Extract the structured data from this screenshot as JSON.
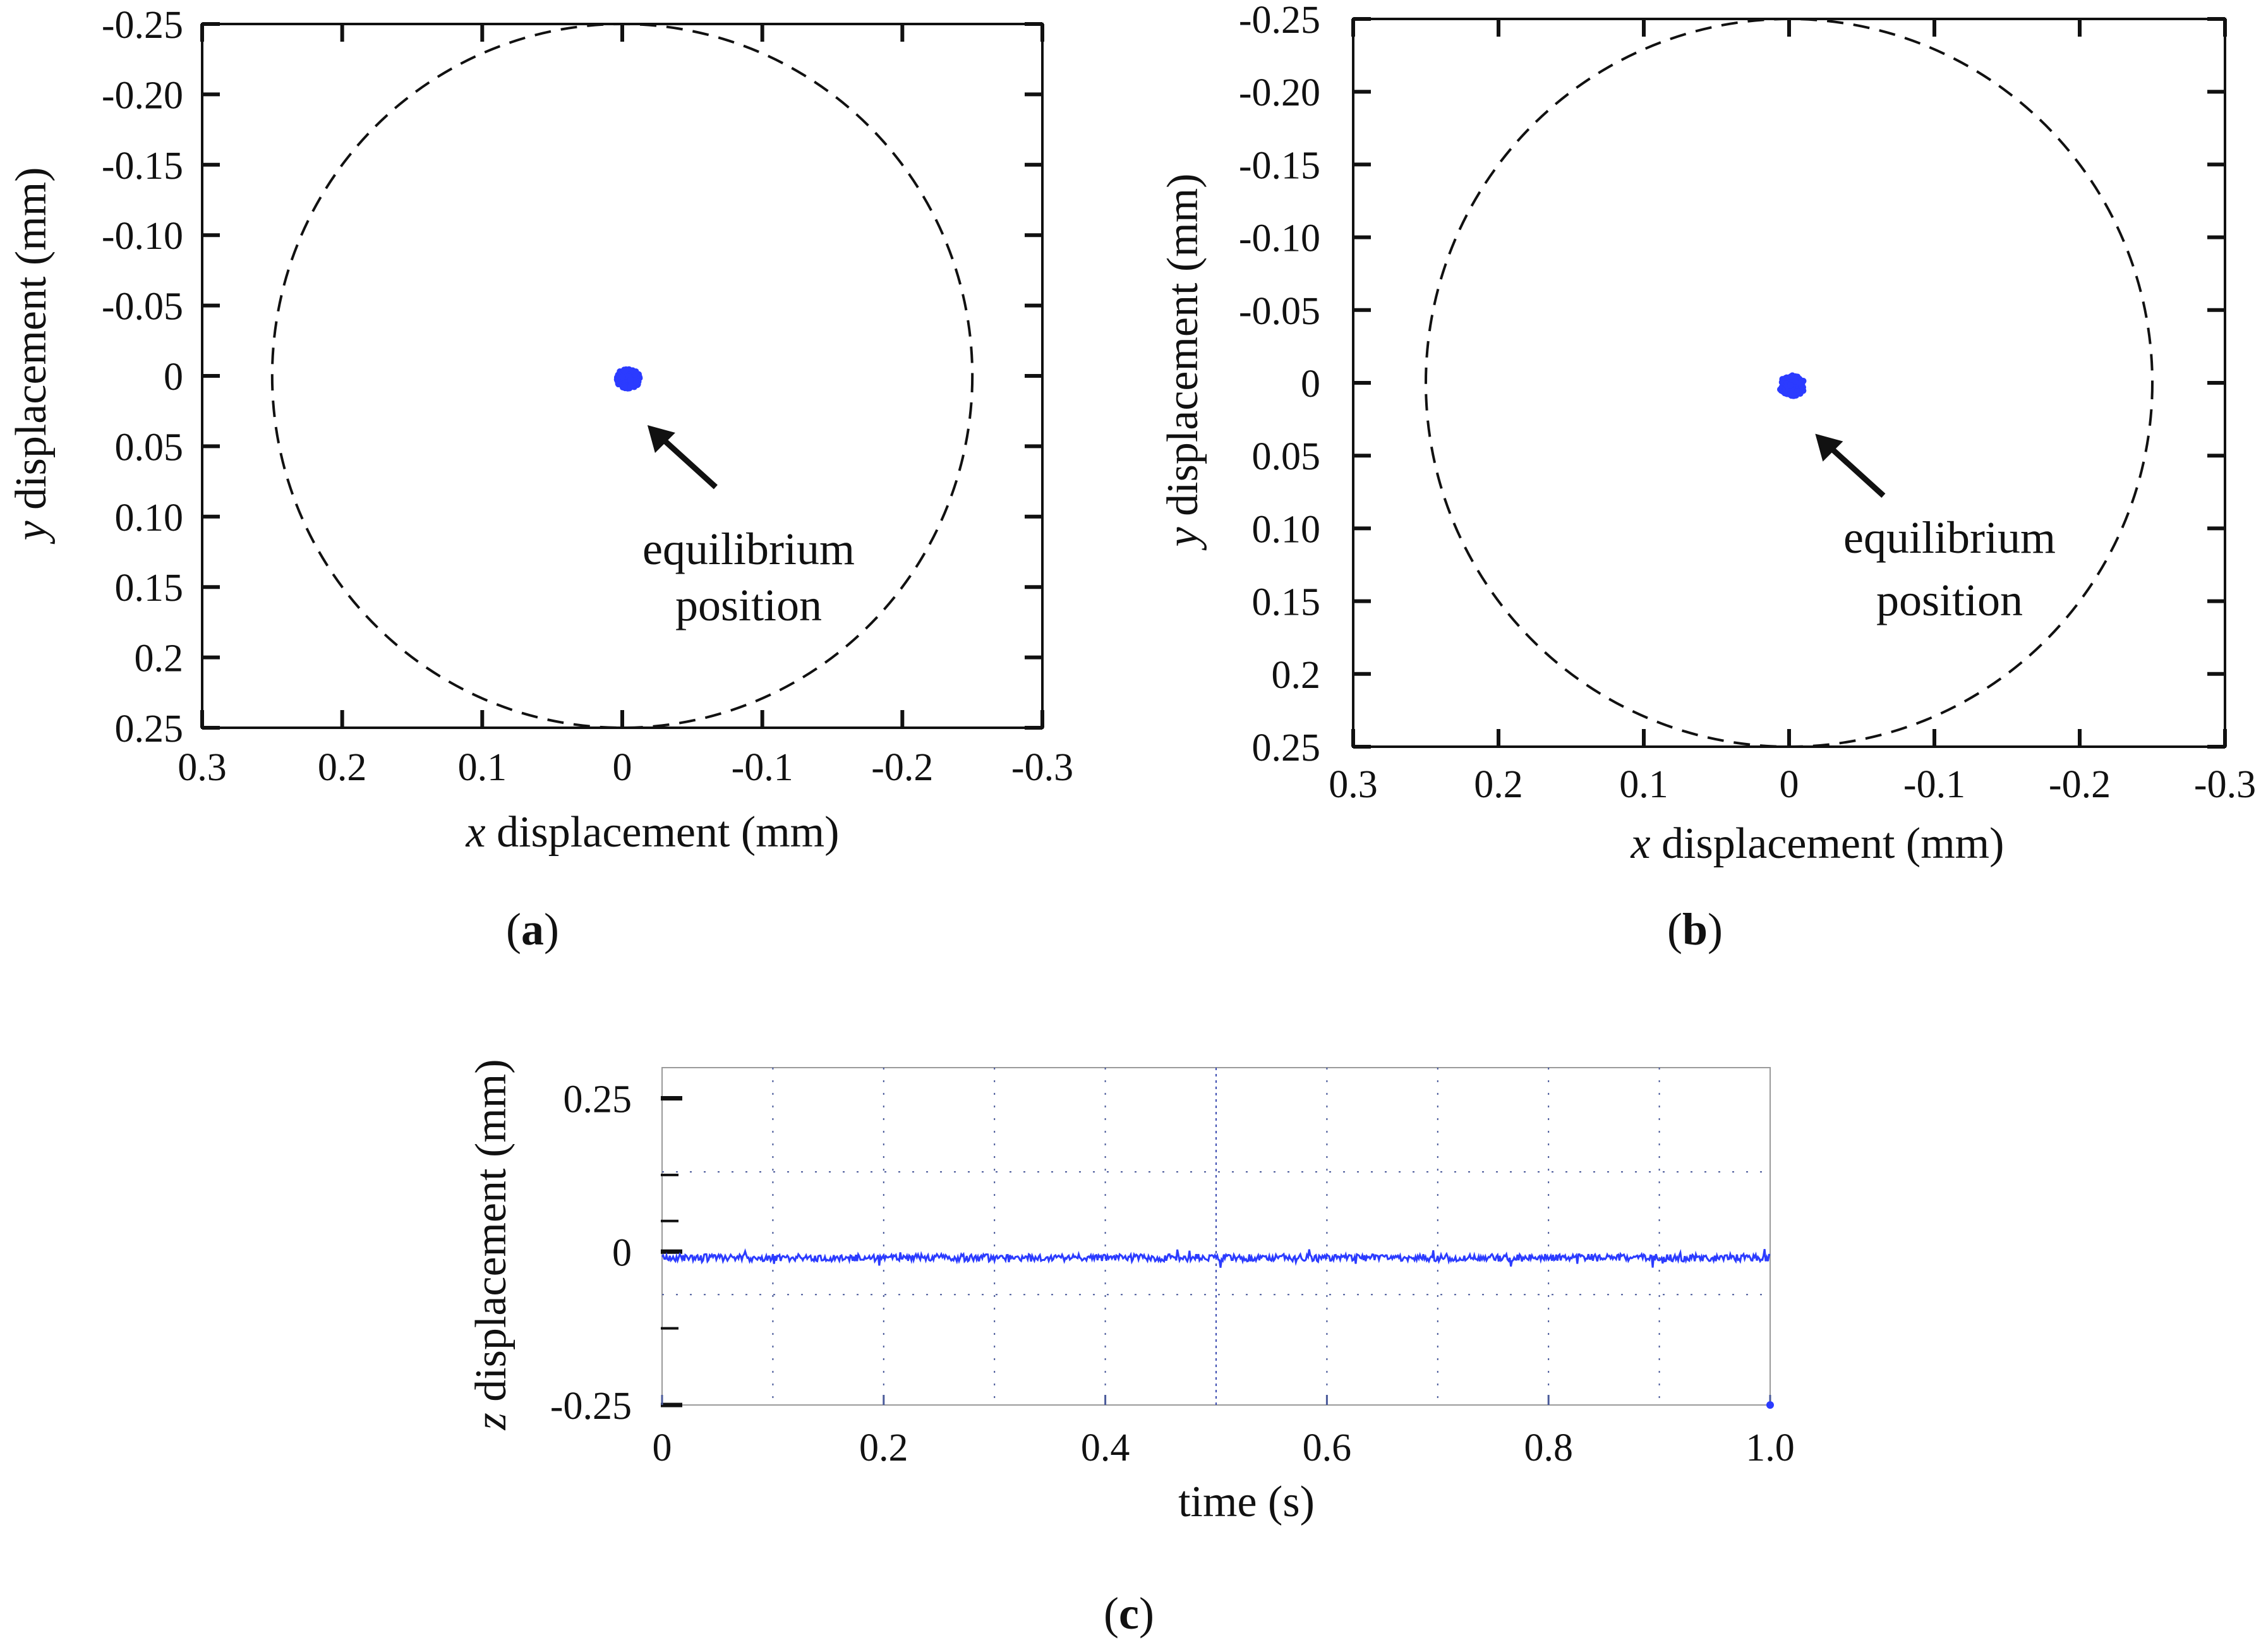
{
  "chart_data": [
    {
      "id": "a",
      "type": "scatter",
      "panel_label": "a",
      "xlabel_var": "x",
      "xlabel_rest": " displacement (mm)",
      "ylabel_var": "y",
      "ylabel_rest": " displacement (mm)",
      "xlim": [
        0.3,
        -0.3
      ],
      "ylim": [
        -0.25,
        0.25
      ],
      "x_ticks": [
        0.3,
        0.2,
        0.1,
        0,
        -0.1,
        -0.2,
        -0.3
      ],
      "x_tick_labels": [
        "0.3",
        "0.2",
        "0.1",
        "0",
        "-0.1",
        "-0.2",
        "-0.3"
      ],
      "y_ticks": [
        -0.25,
        -0.2,
        -0.15,
        -0.1,
        -0.05,
        0,
        0.05,
        0.1,
        0.15,
        0.2,
        0.25
      ],
      "y_tick_labels": [
        "-0.25",
        "-0.20",
        "-0.15",
        "-0.10",
        "-0.05",
        "0",
        "0.05",
        "0.10",
        "0.15",
        "0.2",
        "0.25"
      ],
      "boundary_circle_radius": 0.25,
      "cluster": {
        "center_x": -0.004,
        "center_y": 0.002,
        "spread": 0.008,
        "count": 160
      },
      "annotation": {
        "line1": "equilibrium",
        "line2": "position",
        "arrow_to_x": -0.018,
        "arrow_to_y": 0.035
      },
      "series_color": "#2b3bff",
      "grid": false
    },
    {
      "id": "b",
      "type": "scatter",
      "panel_label": "b",
      "xlabel_var": "x",
      "xlabel_rest": " displacement (mm)",
      "ylabel_var": "y",
      "ylabel_rest": " displacement (mm)",
      "xlim": [
        0.3,
        -0.3
      ],
      "ylim": [
        -0.25,
        0.25
      ],
      "x_ticks": [
        0.3,
        0.2,
        0.1,
        0,
        -0.1,
        -0.2,
        -0.3
      ],
      "x_tick_labels": [
        "0.3",
        "0.2",
        "0.1",
        "0",
        "-0.1",
        "-0.2",
        "-0.3"
      ],
      "y_ticks": [
        -0.25,
        -0.2,
        -0.15,
        -0.1,
        -0.05,
        0,
        0.05,
        0.1,
        0.15,
        0.2,
        0.25
      ],
      "y_tick_labels": [
        "-0.25",
        "-0.20",
        "-0.15",
        "-0.10",
        "-0.05",
        "0",
        "0.05",
        "0.10",
        "0.15",
        "0.2",
        "0.25"
      ],
      "boundary_circle_radius": 0.25,
      "cluster": {
        "center_x": -0.002,
        "center_y": 0.002,
        "spread": 0.008,
        "count": 160
      },
      "annotation": {
        "line1": "equilibrium",
        "line2": "position",
        "arrow_to_x": -0.018,
        "arrow_to_y": 0.035
      },
      "series_color": "#2b3bff",
      "grid": false
    },
    {
      "id": "c",
      "type": "line",
      "panel_label": "c",
      "xlabel": "time (s)",
      "ylabel_var": "z",
      "ylabel_rest": " displacement (mm)",
      "xlim": [
        0,
        1.0
      ],
      "ylim": [
        -0.25,
        0.3
      ],
      "x_ticks": [
        0,
        0.2,
        0.4,
        0.6,
        0.8,
        1.0
      ],
      "x_tick_labels": [
        "0",
        "0.2",
        "0.4",
        "0.6",
        "0.8",
        "1.0"
      ],
      "y_ticks": [
        0.25,
        0,
        -0.25
      ],
      "y_tick_labels": [
        "0.25",
        "0",
        "-0.25"
      ],
      "minor_y_ticks": [
        0.125,
        0.05,
        -0.125
      ],
      "signal": {
        "mean": -0.01,
        "amplitude": 0.006,
        "spikes": 0.013,
        "samples": 1000
      },
      "grid": true,
      "series_color": "#2b3bff"
    }
  ]
}
